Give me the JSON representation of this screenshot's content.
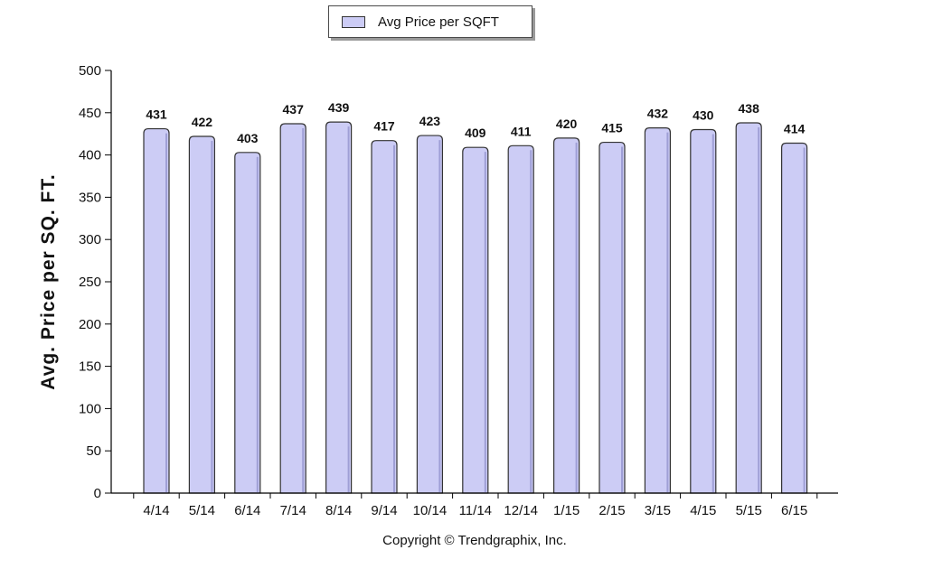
{
  "legend": {
    "label": "Avg Price per SQFT"
  },
  "copyright": "Copyright © Trendgraphix, Inc.",
  "colors": {
    "bar_fill": "#ccccf5",
    "bar_stroke": "#333333",
    "axis": "#000000"
  },
  "chart_data": {
    "type": "bar",
    "title": "",
    "xlabel": "",
    "ylabel": "Avg. Price per SQ. FT.",
    "ylim": [
      0,
      500
    ],
    "yticks": [
      0,
      50,
      100,
      150,
      200,
      250,
      300,
      350,
      400,
      450,
      500
    ],
    "grid": false,
    "legend_position": "top-center",
    "categories": [
      "4/14",
      "5/14",
      "6/14",
      "7/14",
      "8/14",
      "9/14",
      "10/14",
      "11/14",
      "12/14",
      "1/15",
      "2/15",
      "3/15",
      "4/15",
      "5/15",
      "6/15"
    ],
    "series": [
      {
        "name": "Avg Price per SQFT",
        "values": [
          431,
          422,
          403,
          437,
          439,
          417,
          423,
          409,
          411,
          420,
          415,
          432,
          430,
          438,
          414
        ]
      }
    ]
  }
}
